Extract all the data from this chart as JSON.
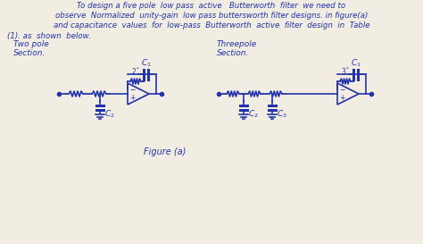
{
  "background_color": "#f2ede3",
  "text_color": "#2233aa",
  "line1": "To design a five pole  low pass  active   Butterworth  filter  we need to",
  "line2": "observe  Normalized  unity-gain  low pass buttersworth filter designs. in figure(a)",
  "line3": "and capacitance  values  for  low-pass  Butterworth  active  filter  design  in  Table",
  "sub_line": "(1). as  shown  below.",
  "label_two_pole": "Two pole\nSection.",
  "label_three_pole": "Threepole\nSection.",
  "caption": "Figure (a)",
  "c1_left_label": "$C_1$",
  "c2_left_label": "$C_2$",
  "c1_right_label": "$C_1$",
  "c2_right_label": "$C_2$",
  "c3_right_label": "$C_3$",
  "r2_label": "$2^*$",
  "r3_label": "$3^*$"
}
